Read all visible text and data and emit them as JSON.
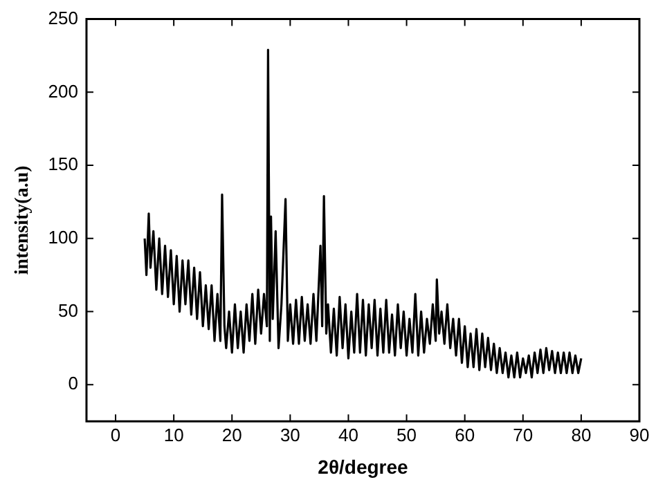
{
  "chart_data": {
    "type": "line",
    "xlabel": "2θ/degree",
    "ylabel": "intensity(a.u)",
    "xlim": [
      -5,
      90
    ],
    "xticks": [
      0,
      10,
      20,
      30,
      40,
      50,
      60,
      70,
      80,
      90
    ],
    "ylim": [
      -25,
      250
    ],
    "yticks": [
      0,
      50,
      100,
      150,
      200,
      250
    ],
    "grid": false,
    "legend": false,
    "marker": "none",
    "line_style": "solid",
    "series": [
      {
        "color": "#000000",
        "x": [
          5,
          5.3,
          5.7,
          6,
          6.5,
          7,
          7.5,
          8,
          8.5,
          9,
          9.5,
          10,
          10.5,
          11,
          11.5,
          12,
          12.5,
          13,
          13.5,
          14,
          14.5,
          15,
          15.5,
          16,
          16.5,
          17,
          17.5,
          18,
          18.3,
          18.7,
          19,
          19.5,
          20,
          20.5,
          21,
          21.5,
          22,
          22.5,
          23,
          23.5,
          24,
          24.5,
          25,
          25.5,
          26,
          26.2,
          26.5,
          26.7,
          27,
          27.5,
          28,
          28.5,
          29.2,
          29.6,
          30,
          30.5,
          31,
          31.5,
          32,
          32.5,
          33,
          33.5,
          34,
          34.5,
          35.2,
          35.5,
          35.8,
          36.2,
          36.5,
          37,
          37.5,
          38,
          38.5,
          39,
          39.5,
          40,
          40.5,
          41,
          41.5,
          42,
          42.5,
          43,
          43.5,
          44,
          44.5,
          45,
          45.5,
          46,
          46.5,
          47,
          47.5,
          48,
          48.5,
          49,
          49.5,
          50,
          50.5,
          51,
          51.5,
          52,
          52.5,
          53,
          53.5,
          54,
          54.5,
          55,
          55.2,
          55.6,
          56,
          56.5,
          57,
          57.5,
          58,
          58.5,
          59,
          59.5,
          60,
          60.5,
          61,
          61.5,
          62,
          62.5,
          63,
          63.5,
          64,
          64.5,
          65,
          65.5,
          66,
          66.5,
          67,
          67.5,
          68,
          68.5,
          69,
          69.5,
          70,
          70.5,
          71,
          71.5,
          72,
          72.5,
          73,
          73.5,
          74,
          74.5,
          75,
          75.5,
          76,
          76.5,
          77,
          77.5,
          78,
          78.5,
          79,
          79.5,
          80
        ],
        "values": [
          100,
          75,
          117,
          80,
          105,
          65,
          100,
          62,
          95,
          60,
          92,
          55,
          88,
          50,
          85,
          55,
          85,
          48,
          80,
          45,
          77,
          40,
          68,
          38,
          68,
          30,
          62,
          30,
          130,
          40,
          25,
          50,
          22,
          55,
          25,
          50,
          22,
          55,
          30,
          62,
          28,
          65,
          35,
          62,
          40,
          229,
          30,
          115,
          45,
          105,
          25,
          55,
          127,
          30,
          55,
          28,
          58,
          28,
          60,
          30,
          55,
          28,
          62,
          30,
          95,
          40,
          129,
          35,
          55,
          22,
          52,
          20,
          60,
          25,
          55,
          18,
          50,
          22,
          62,
          22,
          58,
          20,
          55,
          25,
          58,
          20,
          52,
          22,
          58,
          22,
          48,
          20,
          55,
          25,
          50,
          20,
          45,
          22,
          62,
          20,
          50,
          22,
          45,
          28,
          55,
          30,
          72,
          35,
          50,
          28,
          55,
          25,
          45,
          20,
          45,
          15,
          40,
          12,
          35,
          12,
          38,
          10,
          35,
          12,
          32,
          10,
          28,
          8,
          25,
          8,
          22,
          5,
          20,
          5,
          22,
          5,
          18,
          8,
          20,
          5,
          22,
          8,
          24,
          8,
          25,
          10,
          23,
          8,
          22,
          8,
          22,
          8,
          22,
          8,
          20,
          8,
          18
        ]
      }
    ]
  }
}
